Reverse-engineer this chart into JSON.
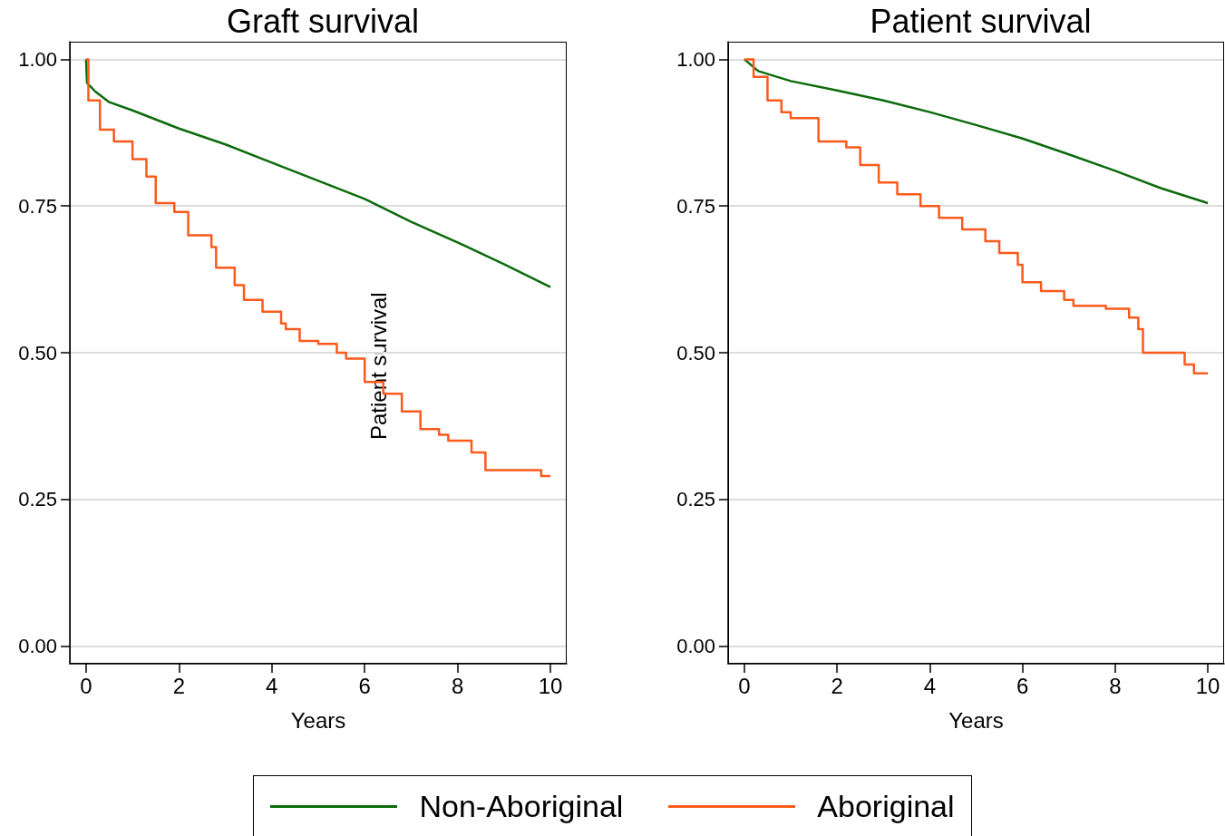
{
  "chart_data": [
    {
      "type": "step",
      "title": "Graft survival",
      "xlabel": "Years",
      "annotations": [
        "Patient survival"
      ],
      "xlim": [
        -0.35,
        10.35
      ],
      "ylim": [
        -0.03,
        1.03
      ],
      "xticks": [
        0,
        2,
        4,
        6,
        8,
        10
      ],
      "yticks": [
        {
          "value": 0,
          "label": "0.00"
        },
        {
          "value": 0.25,
          "label": "0.25"
        },
        {
          "value": 0.5,
          "label": "0.50"
        },
        {
          "value": 0.75,
          "label": "0.75"
        },
        {
          "value": 1,
          "label": "1.00"
        }
      ],
      "grid": "y",
      "legend": "bottom",
      "series": [
        {
          "name": "Non-Aboriginal",
          "type": "line",
          "color": "#0b6b0b",
          "x": [
            0,
            0.02,
            0.2,
            0.5,
            1,
            2,
            3,
            4,
            5,
            6,
            7,
            8,
            9,
            10
          ],
          "values": [
            1,
            0.96,
            0.945,
            0.927,
            0.913,
            0.882,
            0.855,
            0.824,
            0.793,
            0.762,
            0.723,
            0.688,
            0.651,
            0.612
          ]
        },
        {
          "name": "Aboriginal",
          "color": "#fb5a1c",
          "x": [
            0,
            0.05,
            0.3,
            0.6,
            1,
            1.3,
            1.5,
            1.9,
            2.2,
            2.7,
            2.8,
            3.2,
            3.4,
            3.8,
            4.2,
            4.3,
            4.6,
            5,
            5.4,
            5.6,
            6,
            6.4,
            6.8,
            7.2,
            7.6,
            7.8,
            8.3,
            8.6,
            9.8,
            10
          ],
          "values": [
            1,
            0.93,
            0.88,
            0.86,
            0.83,
            0.8,
            0.755,
            0.74,
            0.7,
            0.68,
            0.645,
            0.615,
            0.59,
            0.57,
            0.55,
            0.54,
            0.52,
            0.515,
            0.5,
            0.49,
            0.45,
            0.43,
            0.4,
            0.37,
            0.36,
            0.35,
            0.33,
            0.3,
            0.29,
            0.29
          ]
        }
      ]
    },
    {
      "type": "step",
      "title": "Patient survival",
      "xlabel": "Years",
      "xlim": [
        -0.35,
        10.35
      ],
      "ylim": [
        -0.03,
        1.03
      ],
      "xticks": [
        0,
        2,
        4,
        6,
        8,
        10
      ],
      "yticks": [
        {
          "value": 0,
          "label": "0.00"
        },
        {
          "value": 0.25,
          "label": "0.25"
        },
        {
          "value": 0.5,
          "label": "0.50"
        },
        {
          "value": 0.75,
          "label": "0.75"
        },
        {
          "value": 1,
          "label": "1.00"
        }
      ],
      "grid": "y",
      "series": [
        {
          "type": "line",
          "color": "#0b6b0b",
          "x": [
            0,
            0.3,
            1,
            2,
            3,
            4,
            5,
            6,
            7,
            8,
            9,
            10
          ],
          "values": [
            1,
            0.98,
            0.963,
            0.947,
            0.93,
            0.91,
            0.888,
            0.865,
            0.838,
            0.81,
            0.78,
            0.755
          ]
        },
        {
          "color": "#fb5a1c",
          "x": [
            0,
            0.2,
            0.5,
            0.8,
            1,
            1.6,
            2.2,
            2.5,
            2.9,
            3.3,
            3.8,
            4.2,
            4.7,
            5.2,
            5.5,
            5.9,
            6,
            6.4,
            6.9,
            7.1,
            7.8,
            8.3,
            8.5,
            8.6,
            8.9,
            9.5,
            9.7,
            10
          ],
          "values": [
            1,
            0.97,
            0.93,
            0.91,
            0.9,
            0.86,
            0.85,
            0.82,
            0.79,
            0.77,
            0.75,
            0.73,
            0.71,
            0.69,
            0.67,
            0.65,
            0.62,
            0.605,
            0.59,
            0.58,
            0.575,
            0.56,
            0.54,
            0.5,
            0.5,
            0.48,
            0.465,
            0.465
          ]
        }
      ]
    }
  ]
}
